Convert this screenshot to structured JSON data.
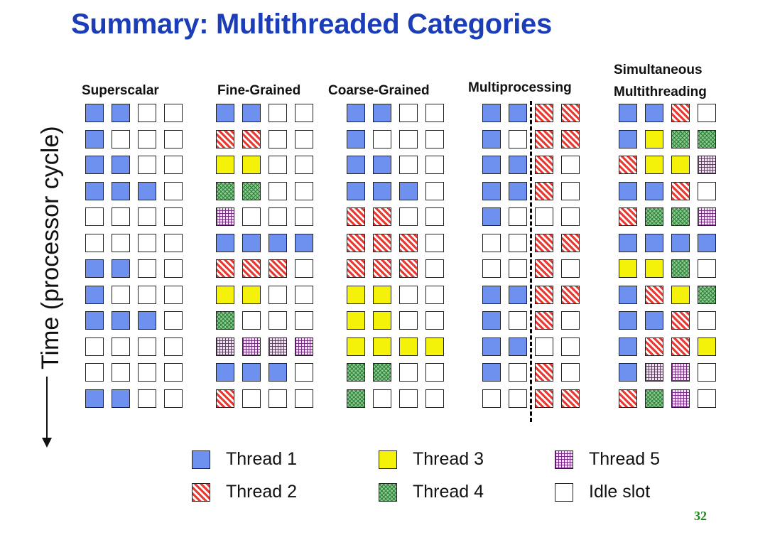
{
  "slide": {
    "title": "Summary: Multithreaded Categories",
    "axis_label": "Time (processor cycle)",
    "page_number": "32"
  },
  "columns": [
    {
      "id": "superscalar",
      "heading": [
        "Superscalar"
      ],
      "grid": [
        [
          1,
          1,
          0,
          0
        ],
        [
          1,
          0,
          0,
          0
        ],
        [
          1,
          1,
          0,
          0
        ],
        [
          1,
          1,
          1,
          0
        ],
        [
          0,
          0,
          0,
          0
        ],
        [
          0,
          0,
          0,
          0
        ],
        [
          1,
          1,
          0,
          0
        ],
        [
          1,
          0,
          0,
          0
        ],
        [
          1,
          1,
          1,
          0
        ],
        [
          0,
          0,
          0,
          0
        ],
        [
          0,
          0,
          0,
          0
        ],
        [
          1,
          1,
          0,
          0
        ]
      ]
    },
    {
      "id": "fine-grained",
      "heading": [
        "Fine-Grained"
      ],
      "grid": [
        [
          1,
          1,
          0,
          0
        ],
        [
          2,
          2,
          0,
          0
        ],
        [
          3,
          3,
          0,
          0
        ],
        [
          4,
          4,
          0,
          0
        ],
        [
          5,
          0,
          0,
          0
        ],
        [
          1,
          1,
          1,
          1
        ],
        [
          2,
          2,
          2,
          0
        ],
        [
          3,
          3,
          0,
          0
        ],
        [
          4,
          0,
          0,
          0
        ],
        [
          5,
          5,
          5,
          5
        ],
        [
          1,
          1,
          1,
          0
        ],
        [
          2,
          0,
          0,
          0
        ]
      ]
    },
    {
      "id": "coarse-grained",
      "heading": [
        "Coarse-Grained"
      ],
      "grid": [
        [
          1,
          1,
          0,
          0
        ],
        [
          1,
          0,
          0,
          0
        ],
        [
          1,
          1,
          0,
          0
        ],
        [
          1,
          1,
          1,
          0
        ],
        [
          2,
          2,
          0,
          0
        ],
        [
          2,
          2,
          2,
          0
        ],
        [
          2,
          2,
          2,
          0
        ],
        [
          3,
          3,
          0,
          0
        ],
        [
          3,
          3,
          0,
          0
        ],
        [
          3,
          3,
          3,
          3
        ],
        [
          4,
          4,
          0,
          0
        ],
        [
          4,
          0,
          0,
          0
        ]
      ]
    },
    {
      "id": "multiprocessing",
      "heading": [
        "Multiprocessing"
      ],
      "grid": [
        [
          1,
          1,
          2,
          2
        ],
        [
          1,
          0,
          2,
          2
        ],
        [
          1,
          1,
          2,
          0
        ],
        [
          1,
          1,
          2,
          0
        ],
        [
          1,
          0,
          0,
          0
        ],
        [
          0,
          0,
          2,
          2
        ],
        [
          0,
          0,
          2,
          0
        ],
        [
          1,
          1,
          2,
          2
        ],
        [
          1,
          0,
          2,
          0
        ],
        [
          1,
          1,
          0,
          0
        ],
        [
          1,
          0,
          2,
          0
        ],
        [
          0,
          0,
          2,
          2
        ]
      ]
    },
    {
      "id": "smt",
      "heading": [
        "Simultaneous",
        "Multithreading"
      ],
      "grid": [
        [
          1,
          1,
          2,
          0
        ],
        [
          1,
          3,
          4,
          4
        ],
        [
          2,
          3,
          3,
          5
        ],
        [
          1,
          1,
          2,
          0
        ],
        [
          2,
          4,
          4,
          5
        ],
        [
          1,
          1,
          1,
          1
        ],
        [
          3,
          3,
          4,
          0
        ],
        [
          1,
          2,
          3,
          4
        ],
        [
          1,
          1,
          2,
          0
        ],
        [
          1,
          2,
          2,
          3
        ],
        [
          1,
          5,
          5,
          0
        ],
        [
          2,
          4,
          5,
          0
        ]
      ]
    }
  ],
  "legend": [
    {
      "label": "Thread 1",
      "fill": 1,
      "icon": "thread-1-swatch"
    },
    {
      "label": "Thread 3",
      "fill": 3,
      "icon": "thread-3-swatch"
    },
    {
      "label": "Thread 5",
      "fill": 5,
      "icon": "thread-5-swatch"
    },
    {
      "label": "Thread 2",
      "fill": 2,
      "icon": "thread-2-swatch"
    },
    {
      "label": "Thread 4",
      "fill": 4,
      "icon": "thread-4-swatch"
    },
    {
      "label": "Idle slot",
      "fill": 0,
      "icon": "idle-slot-swatch"
    }
  ],
  "colors": {
    "title": "#1c3db8",
    "thread_1": "#6e91f0",
    "thread_2": "#e83a32",
    "thread_3": "#f5f20a",
    "thread_4": "#86c98a",
    "thread_5": "#7a2a88",
    "idle": "#ffffff",
    "page_number": "#178a17"
  }
}
